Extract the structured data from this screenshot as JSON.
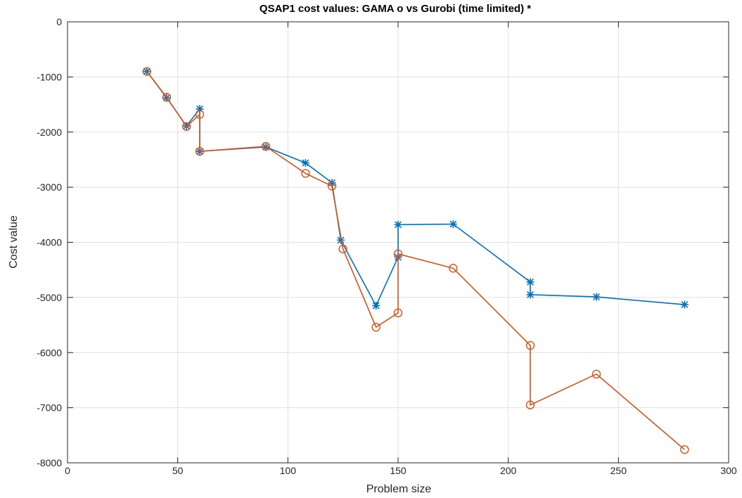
{
  "chart_data": {
    "type": "line",
    "title": "QSAP1 cost values: GAMA o vs Gurobi (time limited) *",
    "xlabel": "Problem size",
    "ylabel": "Cost value",
    "xlim": [
      0,
      300
    ],
    "ylim": [
      -8000,
      0
    ],
    "xticks": [
      0,
      50,
      100,
      150,
      200,
      250,
      300
    ],
    "yticks": [
      0,
      -1000,
      -2000,
      -3000,
      -4000,
      -5000,
      -6000,
      -7000,
      -8000
    ],
    "xtick_labels": [
      "0",
      "50",
      "100",
      "150",
      "200",
      "250",
      "300"
    ],
    "ytick_labels": [
      "0",
      "-1000",
      "-2000",
      "-3000",
      "-4000",
      "-5000",
      "-6000",
      "-7000",
      "-8000"
    ],
    "grid": true,
    "legend": false,
    "series": [
      {
        "marker": "circle",
        "color": "#d95319",
        "x": [
          36,
          45,
          54,
          60,
          60,
          90,
          108,
          120,
          125,
          140,
          150,
          150,
          175,
          210,
          210,
          240,
          280
        ],
        "y": [
          -900,
          -1370,
          -1900,
          -1680,
          -2350,
          -2260,
          -2750,
          -2980,
          -4120,
          -5540,
          -5280,
          -4210,
          -4470,
          -5870,
          -6950,
          -6390,
          -7760
        ]
      },
      {
        "marker": "asterisk",
        "color": "#0072bd",
        "x": [
          36,
          45,
          54,
          60,
          60,
          90,
          108,
          120,
          124,
          140,
          150,
          150,
          175,
          210,
          210,
          240,
          280
        ],
        "y": [
          -900,
          -1380,
          -1890,
          -1580,
          -2350,
          -2270,
          -2560,
          -2920,
          -3960,
          -5150,
          -4270,
          -3680,
          -3670,
          -4720,
          -4950,
          -4990,
          -5130
        ]
      }
    ]
  }
}
